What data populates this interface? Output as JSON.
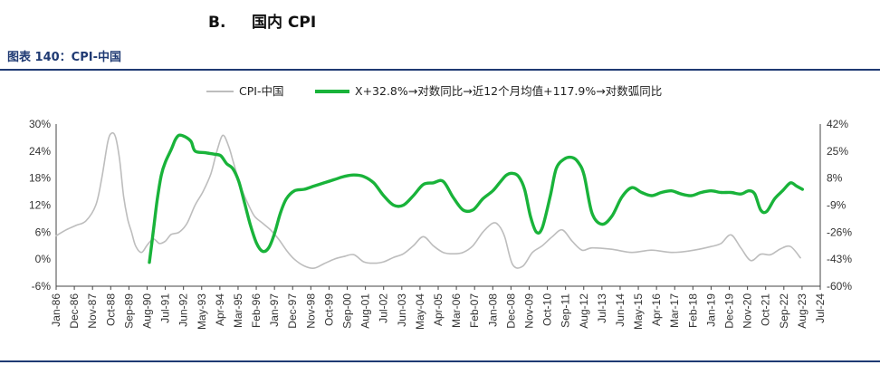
{
  "header": {
    "section_number": "B.",
    "section_title": "国内 CPI",
    "figure_title": "图表 140：CPI-中国"
  },
  "colors": {
    "cpi": "#bdbdbd",
    "model": "#19b33a",
    "rule": "#1f3a73"
  },
  "chart_data": {
    "type": "line",
    "title": "",
    "legend": [
      "CPI-中国",
      "X+32.8%→对数同比→近12个月均值+117.9%→对数弧同比"
    ],
    "legend_placement": "top-center",
    "grid": false,
    "x_tick_labels": [
      "Jan-86",
      "Dec-86",
      "Nov-87",
      "Oct-88",
      "Sep-89",
      "Aug-90",
      "Jul-91",
      "Jun-92",
      "May-93",
      "Apr-94",
      "Mar-95",
      "Feb-96",
      "Jan-97",
      "Dec-97",
      "Nov-98",
      "Oct-99",
      "Sep-00",
      "Aug-01",
      "Jul-02",
      "Jun-03",
      "May-04",
      "Apr-05",
      "Mar-06",
      "Feb-07",
      "Jan-08",
      "Dec-08",
      "Nov-09",
      "Oct-10",
      "Sep-11",
      "Aug-12",
      "Jul-13",
      "Jun-14",
      "May-15",
      "Apr-16",
      "Mar-17",
      "Feb-18",
      "Jan-19",
      "Dec-19",
      "Nov-20",
      "Oct-21",
      "Sep-22",
      "Aug-23",
      "Jul-24"
    ],
    "y_left": {
      "ticks": [
        "30%",
        "24%",
        "18%",
        "12%",
        "6%",
        "0%",
        "-6%"
      ],
      "range": [
        -6,
        30
      ]
    },
    "y_right": {
      "ticks": [
        "42%",
        "25%",
        "8%",
        "-9%",
        "-26%",
        "-43%",
        "-60%"
      ],
      "range": [
        -60,
        42
      ]
    },
    "series": [
      {
        "name": "CPI-中国",
        "axis": "left",
        "x": [
          1986.0,
          1986.5,
          1987.0,
          1987.5,
          1988.0,
          1988.3,
          1988.6,
          1988.8,
          1989.0,
          1989.2,
          1989.4,
          1989.6,
          1989.8,
          1990.0,
          1990.3,
          1990.6,
          1990.9,
          1991.2,
          1991.5,
          1991.8,
          1992.2,
          1992.6,
          1993.0,
          1993.4,
          1993.8,
          1994.1,
          1994.4,
          1994.7,
          1994.9,
          1995.1,
          1995.4,
          1995.7,
          1996.0,
          1996.4,
          1996.8,
          1997.2,
          1997.6,
          1998.0,
          1998.5,
          1999.0,
          1999.5,
          2000.0,
          2000.5,
          2001.0,
          2001.5,
          2002.0,
          2002.5,
          2003.0,
          2003.5,
          2004.0,
          2004.5,
          2005.0,
          2005.5,
          2006.0,
          2006.5,
          2007.0,
          2007.5,
          2008.0,
          2008.3,
          2008.6,
          2009.0,
          2009.5,
          2010.0,
          2010.5,
          2011.0,
          2011.5,
          2012.0,
          2012.5,
          2013.0,
          2014.0,
          2015.0,
          2016.0,
          2017.0,
          2018.0,
          2019.0,
          2019.5,
          2020.0,
          2020.5,
          2021.0,
          2021.5,
          2022.0,
          2022.5,
          2023.0,
          2023.5
        ],
        "values": [
          5.2,
          6.5,
          7.5,
          8.5,
          12.0,
          18.0,
          26.0,
          28.0,
          27.0,
          22.0,
          14.0,
          9.0,
          6.0,
          3.0,
          1.5,
          3.2,
          4.5,
          3.5,
          4.0,
          5.5,
          6.0,
          8.0,
          12.0,
          15.0,
          19.0,
          24.0,
          27.5,
          25.0,
          22.0,
          19.0,
          15.0,
          12.0,
          9.5,
          8.0,
          6.5,
          4.5,
          2.0,
          0.0,
          -1.5,
          -2.0,
          -1.0,
          0.0,
          0.6,
          1.0,
          -0.6,
          -0.9,
          -0.6,
          0.4,
          1.2,
          3.0,
          5.0,
          3.0,
          1.5,
          1.2,
          1.5,
          3.0,
          6.0,
          8.0,
          7.5,
          5.0,
          -1.2,
          -1.6,
          1.5,
          3.0,
          5.0,
          6.5,
          4.0,
          2.0,
          2.5,
          2.2,
          1.5,
          2.0,
          1.5,
          1.9,
          2.8,
          3.5,
          5.4,
          2.5,
          -0.3,
          1.1,
          1.0,
          2.3,
          2.8,
          0.3
        ]
      },
      {
        "name": "X+32.8%→对数同比→近12个月均值+117.9%→对数弧同比",
        "axis": "right",
        "x": [
          1990.7,
          1990.9,
          1991.1,
          1991.3,
          1991.5,
          1991.8,
          1992.0,
          1992.2,
          1992.5,
          1992.8,
          1993.0,
          1993.5,
          1994.0,
          1994.3,
          1994.6,
          1994.9,
          1995.2,
          1995.5,
          1995.8,
          1996.1,
          1996.4,
          1996.7,
          1997.0,
          1997.3,
          1997.6,
          1998.0,
          1998.5,
          1999.0,
          1999.5,
          2000.0,
          2000.5,
          2001.0,
          2001.5,
          2002.0,
          2002.5,
          2003.0,
          2003.5,
          2004.0,
          2004.5,
          2005.0,
          2005.5,
          2006.0,
          2006.5,
          2007.0,
          2007.5,
          2008.0,
          2008.4,
          2008.7,
          2009.0,
          2009.3,
          2009.6,
          2009.9,
          2010.2,
          2010.5,
          2010.9,
          2011.2,
          2011.6,
          2012.0,
          2012.3,
          2012.6,
          2013.0,
          2013.5,
          2014.0,
          2014.5,
          2015.0,
          2015.5,
          2016.0,
          2016.5,
          2017.0,
          2017.5,
          2018.0,
          2018.5,
          2019.0,
          2019.5,
          2020.0,
          2020.5,
          2020.9,
          2021.2,
          2021.5,
          2021.8,
          2022.2,
          2022.6,
          2023.0,
          2023.3,
          2023.6
        ],
        "values": [
          -45,
          -25,
          -5,
          10,
          18,
          26,
          32,
          35,
          34,
          31,
          25,
          24,
          23,
          22,
          17,
          14,
          6,
          -8,
          -22,
          -33,
          -38,
          -36,
          -27,
          -14,
          -5,
          0,
          1,
          3,
          5,
          7,
          9,
          10,
          9,
          5,
          -3,
          -9,
          -9,
          -3,
          4,
          5,
          6,
          -4,
          -12,
          -12,
          -5,
          0,
          6,
          10,
          11,
          9,
          1,
          -16,
          -26,
          -23,
          -3,
          14,
          20,
          21,
          18,
          10,
          -14,
          -21,
          -16,
          -4,
          2,
          -1,
          -3,
          -1,
          0,
          -2,
          -3,
          -1,
          0,
          -1,
          -1,
          -2,
          0,
          -2,
          -12,
          -13,
          -5,
          0,
          5,
          3,
          1
        ]
      }
    ]
  }
}
